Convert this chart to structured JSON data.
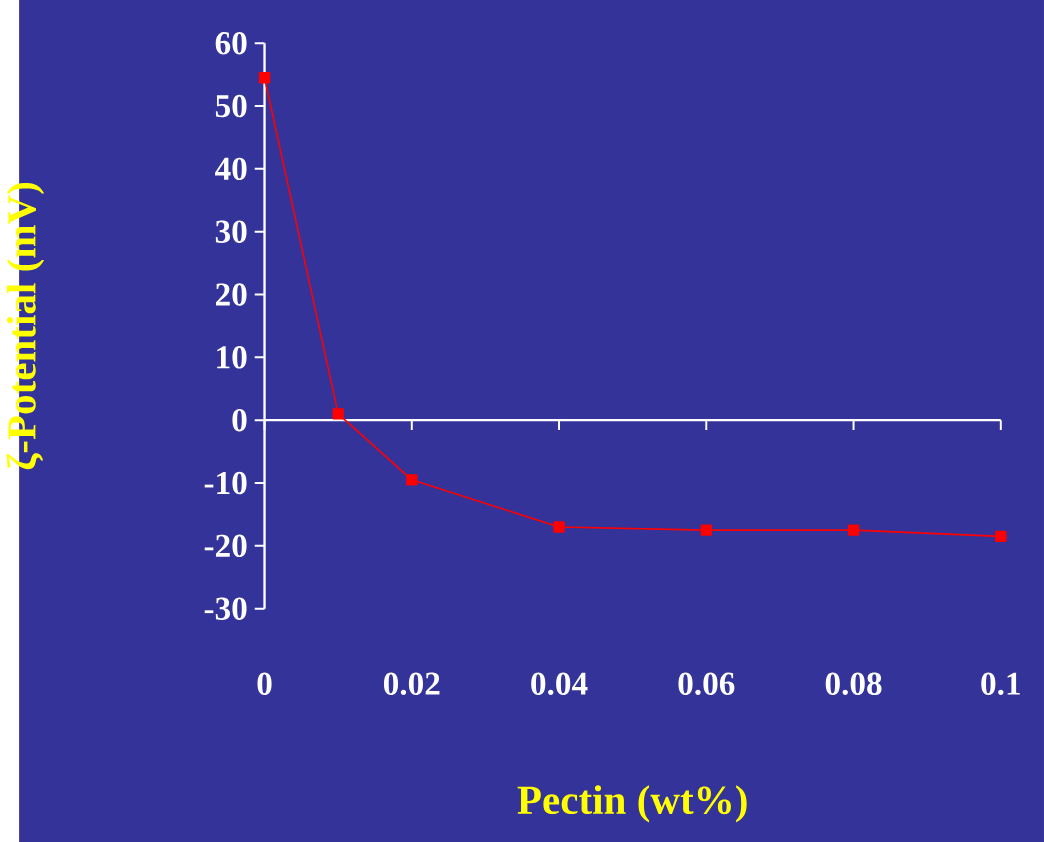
{
  "chart_data": {
    "type": "line",
    "xlabel": "Pectin (wt%)",
    "ylabel": "ζ-Potential (mV)",
    "x": [
      0,
      0.01,
      0.02,
      0.04,
      0.06,
      0.08,
      0.1
    ],
    "series": [
      {
        "color": "#ff0000",
        "values": [
          54.5,
          1,
          -9.5,
          -17,
          -17.5,
          -17.5,
          -18.5
        ]
      }
    ],
    "xlim": [
      0,
      0.1
    ],
    "xticks": [
      0,
      0.02,
      0.04,
      0.06,
      0.08,
      0.1
    ],
    "ylim": [
      -30,
      60
    ],
    "yticks": [
      -30,
      -20,
      -10,
      0,
      10,
      20,
      30,
      40,
      50,
      60
    ],
    "marker": "square",
    "line_style": "solid"
  }
}
